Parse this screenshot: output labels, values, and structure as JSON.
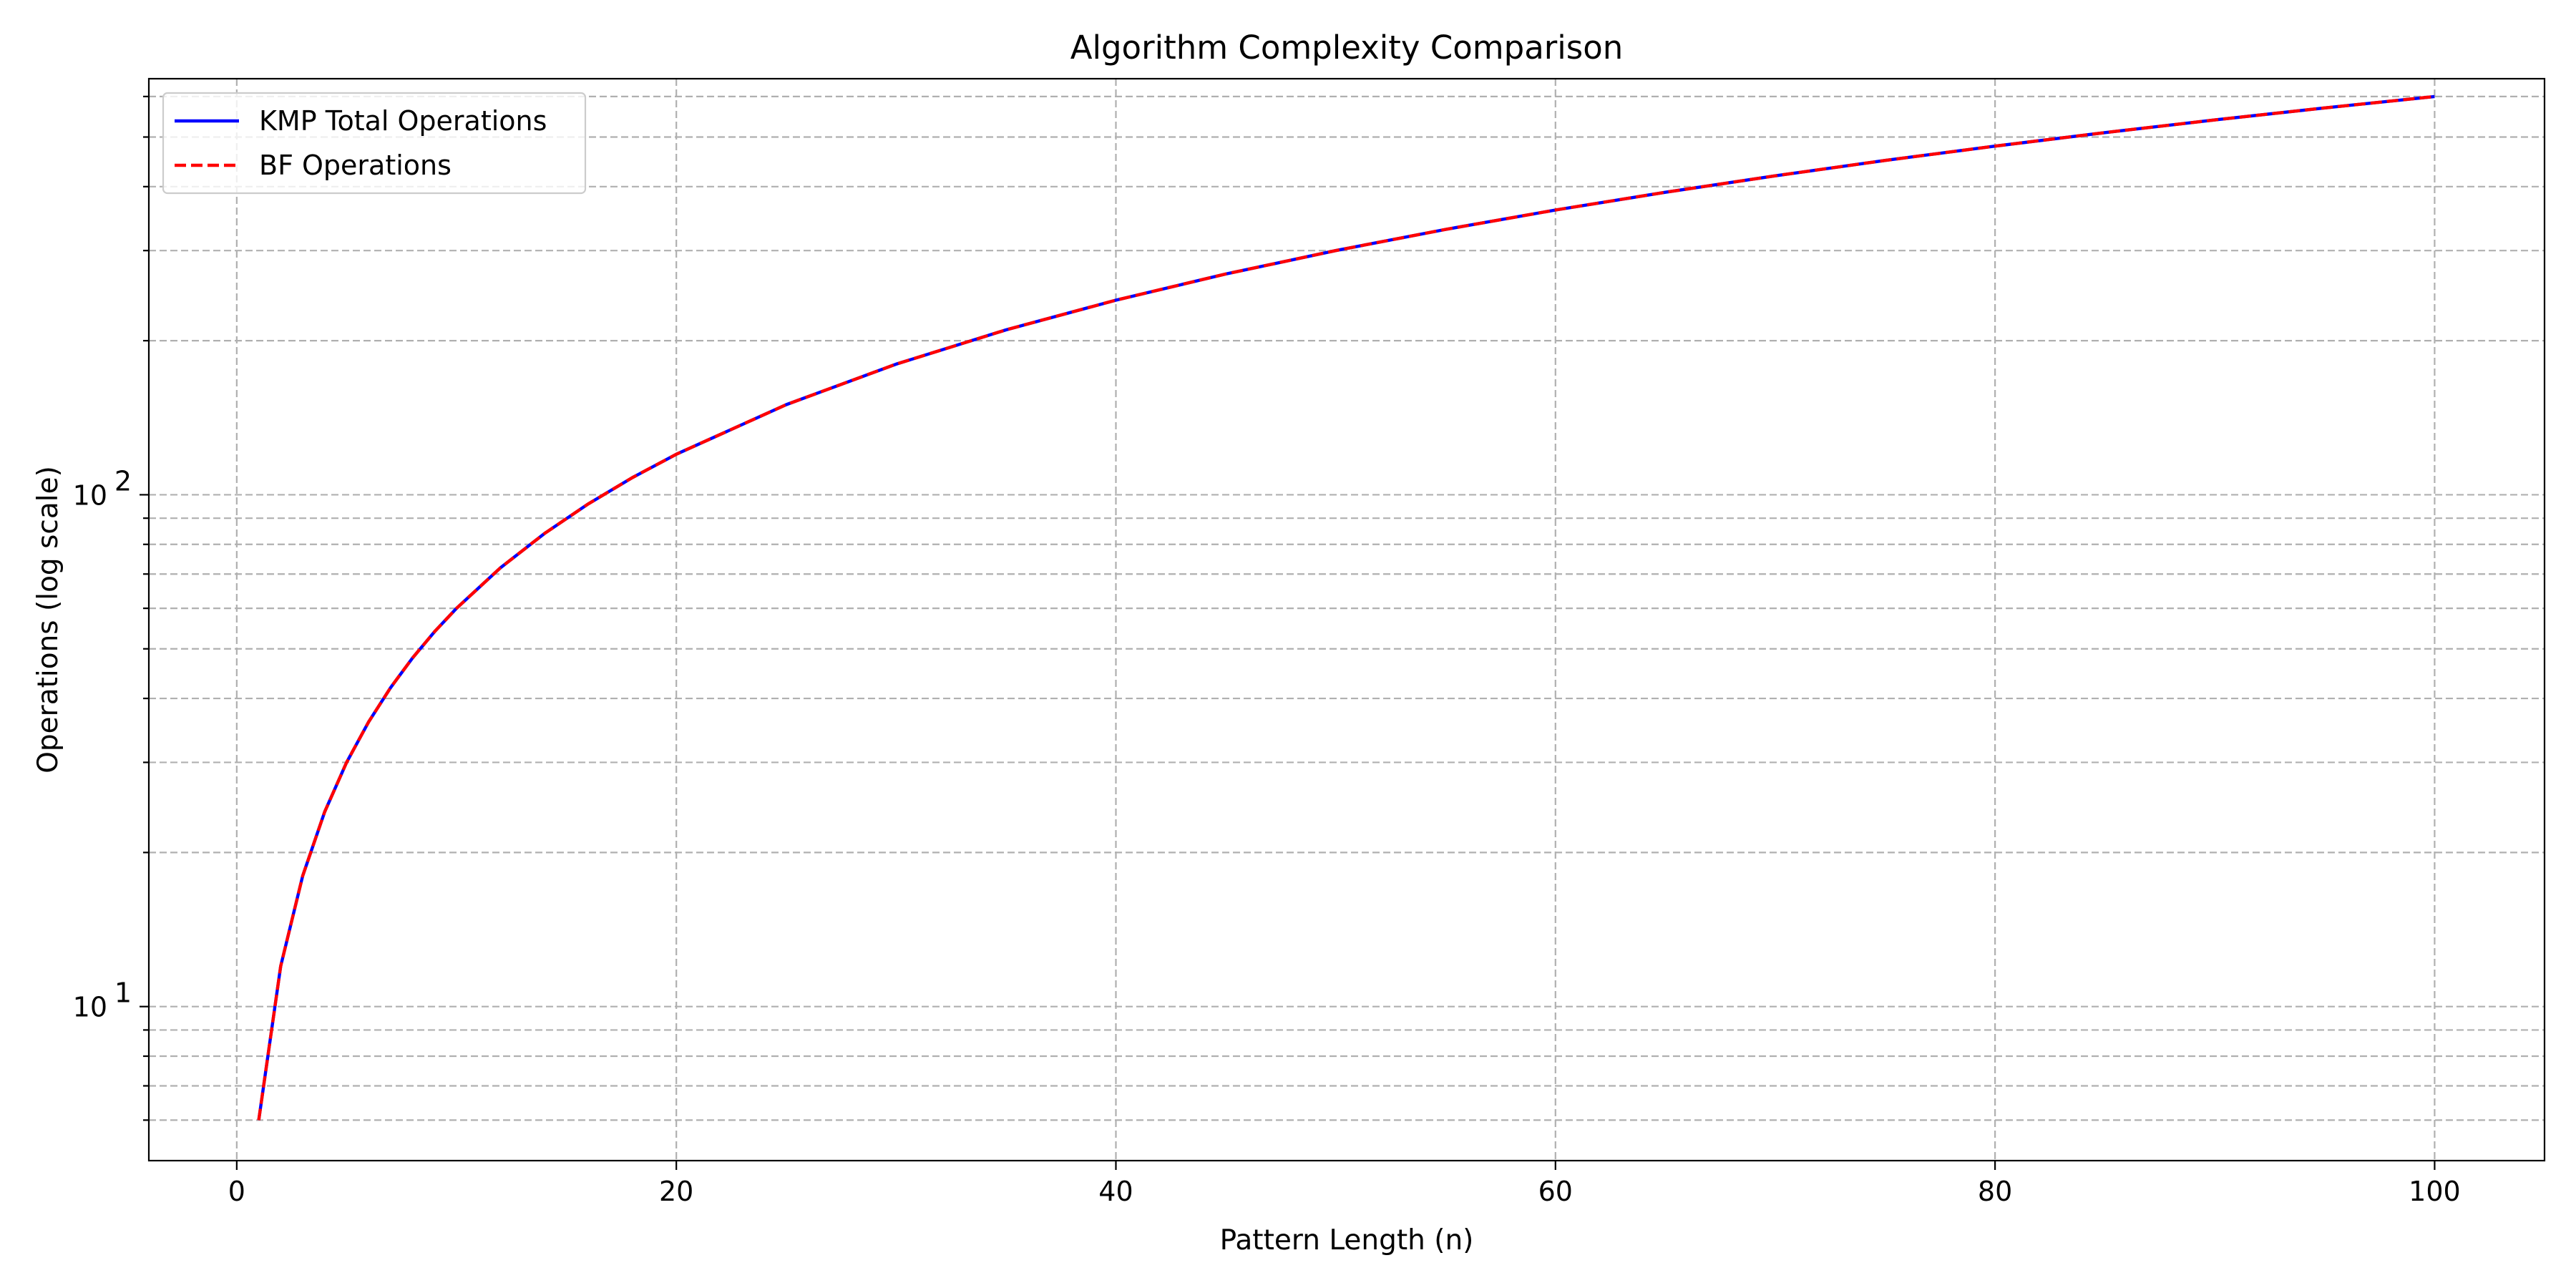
{
  "chart_data": {
    "type": "line",
    "title": "Algorithm Complexity Comparison",
    "xlabel": "Pattern Length (n)",
    "ylabel": "Operations (log scale)",
    "xlim": [
      -4,
      105
    ],
    "ylim": [
      5,
      650
    ],
    "yscale": "log",
    "grid": true,
    "legend_position": "top-left",
    "x_ticks": [
      0,
      20,
      40,
      60,
      80,
      100
    ],
    "y_major_ticks": [
      10,
      100
    ],
    "y_major_tick_labels": [
      {
        "base": "10",
        "exp": "1"
      },
      {
        "base": "10",
        "exp": "2"
      }
    ],
    "y_minor_ticks": [
      6,
      7,
      8,
      9,
      20,
      30,
      40,
      50,
      60,
      70,
      80,
      90,
      200,
      300,
      400,
      500,
      600
    ],
    "series": [
      {
        "name": "KMP Total Operations",
        "color": "#0000ff",
        "style": "solid",
        "x": [
          1,
          2,
          3,
          4,
          5,
          6,
          7,
          8,
          9,
          10,
          12,
          14,
          16,
          18,
          20,
          25,
          30,
          35,
          40,
          45,
          50,
          55,
          60,
          65,
          70,
          75,
          80,
          85,
          90,
          95,
          100
        ],
        "y": [
          6,
          12,
          18,
          24,
          30,
          36,
          42,
          48,
          54,
          60,
          72,
          84,
          96,
          108,
          120,
          150,
          180,
          210,
          240,
          270,
          300,
          330,
          360,
          390,
          420,
          450,
          480,
          510,
          540,
          570,
          600
        ]
      },
      {
        "name": "BF Operations",
        "color": "#ff0000",
        "style": "dashed",
        "x": [
          1,
          2,
          3,
          4,
          5,
          6,
          7,
          8,
          9,
          10,
          12,
          14,
          16,
          18,
          20,
          25,
          30,
          35,
          40,
          45,
          50,
          55,
          60,
          65,
          70,
          75,
          80,
          85,
          90,
          95,
          100
        ],
        "y": [
          6,
          12,
          18,
          24,
          30,
          36,
          42,
          48,
          54,
          60,
          72,
          84,
          96,
          108,
          120,
          150,
          180,
          210,
          240,
          270,
          300,
          330,
          360,
          390,
          420,
          450,
          480,
          510,
          540,
          570,
          600
        ]
      }
    ]
  }
}
